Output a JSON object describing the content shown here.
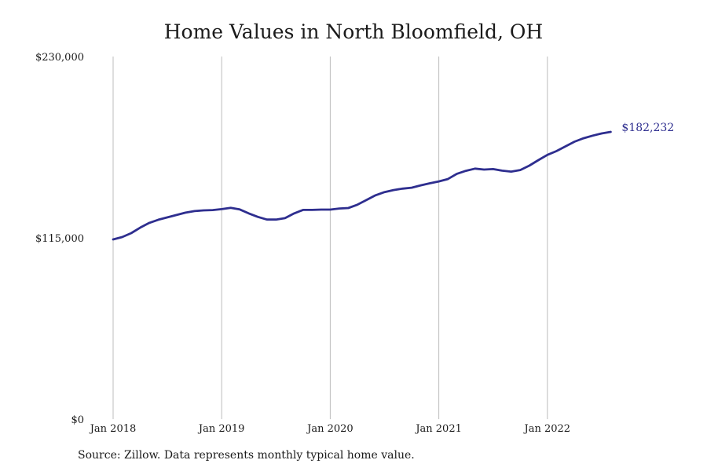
{
  "title": "Home Values in North Bloomfield, OH",
  "source": "Source: Zillow. Data represents monthly typical home value.",
  "end_label": "$182,232",
  "line_color": "#2e2e8f",
  "chart_data": {
    "type": "line",
    "title": "Home Values in North Bloomfield, OH",
    "xlabel": "",
    "ylabel": "",
    "ylim": [
      0,
      230000
    ],
    "y_ticks": [
      {
        "value": 0,
        "label": "$0"
      },
      {
        "value": 115000,
        "label": "$115,000"
      },
      {
        "value": 230000,
        "label": "$230,000"
      }
    ],
    "x_ticks": [
      {
        "value": "2018-01",
        "label": "Jan 2018"
      },
      {
        "value": "2019-01",
        "label": "Jan 2019"
      },
      {
        "value": "2020-01",
        "label": "Jan 2020"
      },
      {
        "value": "2021-01",
        "label": "Jan 2021"
      },
      {
        "value": "2022-01",
        "label": "Jan 2022"
      }
    ],
    "vertical_grid": true,
    "series": [
      {
        "x": [
          "2018-01",
          "2018-02",
          "2018-03",
          "2018-04",
          "2018-05",
          "2018-06",
          "2018-07",
          "2018-08",
          "2018-09",
          "2018-10",
          "2018-11",
          "2018-12",
          "2019-01",
          "2019-02",
          "2019-03",
          "2019-04",
          "2019-05",
          "2019-06",
          "2019-07",
          "2019-08",
          "2019-09",
          "2019-10",
          "2019-11",
          "2019-12",
          "2020-01",
          "2020-02",
          "2020-03",
          "2020-04",
          "2020-05",
          "2020-06",
          "2020-07",
          "2020-08",
          "2020-09",
          "2020-10",
          "2020-11",
          "2020-12",
          "2021-01",
          "2021-02",
          "2021-03",
          "2021-04",
          "2021-05",
          "2021-06",
          "2021-07",
          "2021-08",
          "2021-09",
          "2021-10",
          "2021-11",
          "2021-12",
          "2022-01",
          "2022-02",
          "2022-03",
          "2022-04",
          "2022-05",
          "2022-06",
          "2022-07",
          "2022-08"
        ],
        "values": [
          114000,
          115500,
          118000,
          121500,
          124500,
          126500,
          128000,
          129500,
          131000,
          132000,
          132400,
          132600,
          133200,
          134000,
          133000,
          130500,
          128300,
          126600,
          126600,
          127500,
          130500,
          132700,
          132700,
          132900,
          132900,
          133600,
          133900,
          136000,
          139000,
          142000,
          144000,
          145300,
          146200,
          146800,
          148300,
          149600,
          150800,
          152300,
          155600,
          157500,
          158900,
          158300,
          158600,
          157600,
          157000,
          158000,
          160800,
          164300,
          167600,
          170000,
          173000,
          176000,
          178200,
          179800,
          181200,
          182232
        ]
      }
    ]
  }
}
